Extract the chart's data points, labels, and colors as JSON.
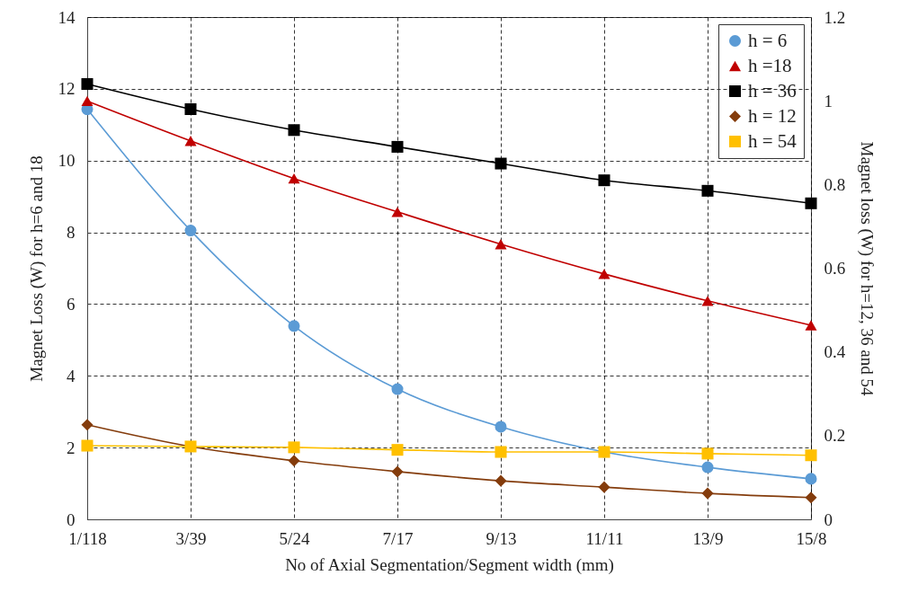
{
  "chart_data": {
    "type": "line",
    "xlabel": "No of Axial Segmentation/Segment width (mm)",
    "ylabel": "Magnet Loss (W)  for h=6 and 18",
    "y2label": "Magnet loss (W) for h=12, 36 and 54",
    "categories": [
      "1/118",
      "3/39",
      "5/24",
      "7/17",
      "9/13",
      "11/11",
      "13/9",
      "15/8"
    ],
    "series": [
      {
        "name": "h = 6",
        "color": "#5b9bd5",
        "marker": "circle",
        "values": [
          11.43,
          8.05,
          5.39,
          3.63,
          2.58,
          1.88,
          1.45,
          1.13
        ]
      },
      {
        "name": "h =18",
        "color": "#c00000",
        "marker": "triangle",
        "values": [
          11.66,
          10.55,
          9.5,
          8.57,
          7.67,
          6.84,
          6.09,
          5.41
        ]
      },
      {
        "name": "h = 36",
        "color": "#000000",
        "marker": "square",
        "axis": "y2",
        "values": [
          1.04,
          0.98,
          0.93,
          0.89,
          0.85,
          0.81,
          0.785,
          0.755
        ]
      },
      {
        "name": "h = 12",
        "color": "#843c0c",
        "marker": "diamond",
        "axis": "y2",
        "values": [
          0.226,
          0.174,
          0.14,
          0.114,
          0.092,
          0.077,
          0.062,
          0.052
        ]
      },
      {
        "name": "h = 54",
        "color": "#ffc000",
        "marker": "square",
        "axis": "y2",
        "values": [
          0.176,
          0.174,
          0.172,
          0.166,
          0.161,
          0.161,
          0.157,
          0.153
        ]
      }
    ],
    "ylim": [
      0,
      14
    ],
    "yticks": [
      0,
      2,
      4,
      6,
      8,
      10,
      12,
      14
    ],
    "y2lim": [
      0,
      1.2
    ],
    "y2ticks": [
      0,
      0.2,
      0.4,
      0.6,
      0.8,
      1,
      1.2
    ],
    "grid": true,
    "legend": "top right"
  }
}
